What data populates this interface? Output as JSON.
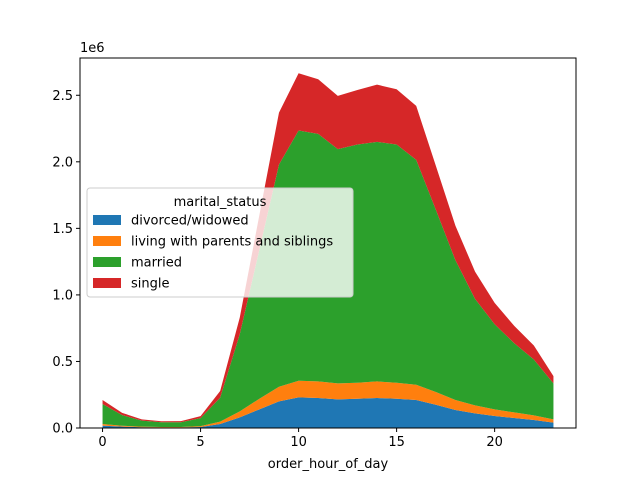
{
  "chart_data": {
    "type": "area",
    "stacked": true,
    "xlabel": "order_hour_of_day",
    "ylabel": "",
    "y_offset_text": "1e6",
    "xlim": [
      -1.15,
      24.15
    ],
    "ylim": [
      0,
      2.78
    ],
    "x_ticks": [
      0,
      5,
      10,
      15,
      20
    ],
    "y_ticks": [
      0.0,
      0.5,
      1.0,
      1.5,
      2.0,
      2.5
    ],
    "y_tick_labels": [
      "0.0",
      "0.5",
      "1.0",
      "1.5",
      "2.0",
      "2.5"
    ],
    "legend": {
      "title": "marital_status",
      "placement": "center-left"
    },
    "x": [
      0,
      1,
      2,
      3,
      4,
      5,
      6,
      7,
      8,
      9,
      10,
      11,
      12,
      13,
      14,
      15,
      16,
      17,
      18,
      19,
      20,
      21,
      22,
      23
    ],
    "series": [
      {
        "name": "divorced/widowed",
        "color": "#1f77b4",
        "values": [
          0.018,
          0.01,
          0.006,
          0.005,
          0.005,
          0.008,
          0.03,
          0.08,
          0.14,
          0.2,
          0.23,
          0.225,
          0.215,
          0.22,
          0.225,
          0.22,
          0.21,
          0.175,
          0.135,
          0.11,
          0.09,
          0.075,
          0.06,
          0.04
        ]
      },
      {
        "name": "living with parents and siblings",
        "color": "#ff7f0e",
        "values": [
          0.012,
          0.007,
          0.004,
          0.003,
          0.003,
          0.006,
          0.018,
          0.045,
          0.08,
          0.11,
          0.125,
          0.125,
          0.12,
          0.12,
          0.125,
          0.12,
          0.115,
          0.095,
          0.075,
          0.06,
          0.05,
          0.042,
          0.035,
          0.025
        ]
      },
      {
        "name": "married",
        "color": "#2ca02c",
        "values": [
          0.15,
          0.08,
          0.045,
          0.035,
          0.035,
          0.06,
          0.18,
          0.58,
          1.12,
          1.67,
          1.88,
          1.86,
          1.76,
          1.79,
          1.8,
          1.79,
          1.69,
          1.37,
          1.05,
          0.8,
          0.64,
          0.52,
          0.42,
          0.27
        ]
      },
      {
        "name": "single",
        "color": "#d62728",
        "values": [
          0.03,
          0.017,
          0.01,
          0.008,
          0.009,
          0.015,
          0.05,
          0.125,
          0.26,
          0.39,
          0.43,
          0.41,
          0.4,
          0.41,
          0.43,
          0.415,
          0.405,
          0.33,
          0.26,
          0.205,
          0.16,
          0.13,
          0.105,
          0.055
        ]
      }
    ]
  }
}
